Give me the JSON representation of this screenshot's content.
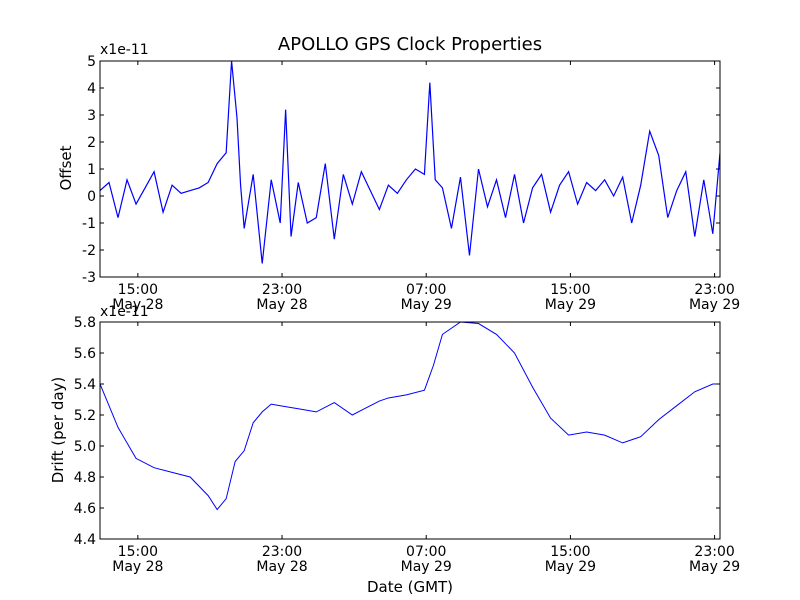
{
  "figure_title": "APOLLO GPS Clock Properties",
  "line_color": "#0000ff",
  "chart_data": [
    {
      "type": "line",
      "name": "offset",
      "ylabel": "Offset",
      "xlabel": "",
      "exponent_label": "x1e-11",
      "ylim": [
        -3,
        5
      ],
      "yticks": [
        -3,
        -2,
        -1,
        0,
        1,
        2,
        3,
        4,
        5
      ],
      "ytick_labels": [
        "-3",
        "-2",
        "-1",
        "0",
        "1",
        "2",
        "3",
        "4",
        "5"
      ],
      "xlim_hours": [
        0,
        34.4
      ],
      "xticks_hours": [
        2.1,
        10.1,
        18.1,
        26.1,
        34.1
      ],
      "xtick_labels": [
        [
          "15:00",
          "May 28"
        ],
        [
          "23:00",
          "May 28"
        ],
        [
          "07:00",
          "May 29"
        ],
        [
          "15:00",
          "May 29"
        ],
        [
          "23:00",
          "May 29"
        ]
      ],
      "x_hours": [
        0,
        0.5,
        1,
        1.5,
        2,
        2.5,
        3,
        3.5,
        4,
        4.5,
        5,
        5.5,
        6,
        6.5,
        7,
        7.3,
        7.6,
        7.8,
        8,
        8.5,
        9,
        9.5,
        10,
        10.3,
        10.6,
        11,
        11.5,
        12,
        12.5,
        13,
        13.5,
        14,
        14.5,
        15,
        15.5,
        16,
        16.5,
        17,
        17.5,
        18,
        18.3,
        18.6,
        19,
        19.5,
        20,
        20.5,
        21,
        21.5,
        22,
        22.5,
        23,
        23.5,
        24,
        24.5,
        25,
        25.5,
        26,
        26.5,
        27,
        27.5,
        28,
        28.5,
        29,
        29.5,
        30,
        30.5,
        31,
        31.5,
        32,
        32.5,
        33,
        33.5,
        34,
        34.4
      ],
      "values": [
        0.2,
        0.5,
        -0.8,
        0.6,
        -0.3,
        0.3,
        0.9,
        -0.6,
        0.4,
        0.1,
        0.2,
        0.3,
        0.5,
        1.2,
        1.6,
        5.0,
        2.9,
        0.4,
        -1.2,
        0.8,
        -2.5,
        0.6,
        -1.0,
        3.2,
        -1.5,
        0.5,
        -1.0,
        -0.8,
        1.2,
        -1.6,
        0.8,
        -0.3,
        0.9,
        0.2,
        -0.5,
        0.4,
        0.1,
        0.6,
        1.0,
        0.8,
        4.2,
        0.6,
        0.3,
        -1.2,
        0.7,
        -2.2,
        1.0,
        -0.4,
        0.6,
        -0.8,
        0.8,
        -1.0,
        0.3,
        0.8,
        -0.6,
        0.4,
        0.9,
        -0.3,
        0.5,
        0.2,
        0.6,
        0.0,
        0.7,
        -1.0,
        0.4,
        2.4,
        1.5,
        -0.8,
        0.2,
        0.9,
        -1.5,
        0.6,
        -1.4,
        1.6
      ]
    },
    {
      "type": "line",
      "name": "drift",
      "ylabel": "Drift (per day)",
      "xlabel": "Date (GMT)",
      "exponent_label": "x1e-11",
      "ylim": [
        4.4,
        5.8
      ],
      "yticks": [
        4.4,
        4.6,
        4.8,
        5.0,
        5.2,
        5.4,
        5.6,
        5.8
      ],
      "ytick_labels": [
        "4.4",
        "4.6",
        "4.8",
        "5.0",
        "5.2",
        "5.4",
        "5.6",
        "5.8"
      ],
      "xlim_hours": [
        0,
        34.4
      ],
      "xticks_hours": [
        2.1,
        10.1,
        18.1,
        26.1,
        34.1
      ],
      "xtick_labels": [
        [
          "15:00",
          "May 28"
        ],
        [
          "23:00",
          "May 28"
        ],
        [
          "07:00",
          "May 29"
        ],
        [
          "15:00",
          "May 29"
        ],
        [
          "23:00",
          "May 29"
        ]
      ],
      "x_hours": [
        0,
        1,
        2,
        3,
        4,
        5,
        6,
        6.5,
        7,
        7.5,
        8,
        8.5,
        9,
        9.5,
        10,
        11,
        12,
        13,
        14,
        14.5,
        15,
        15.5,
        16,
        17,
        18,
        18.5,
        19,
        20,
        21,
        22,
        23,
        24,
        25,
        26,
        27,
        28,
        29,
        30,
        31,
        32,
        33,
        34,
        34.4
      ],
      "values": [
        5.4,
        5.12,
        4.92,
        4.86,
        4.83,
        4.8,
        4.68,
        4.59,
        4.66,
        4.9,
        4.97,
        5.15,
        5.22,
        5.27,
        5.26,
        5.24,
        5.22,
        5.28,
        5.2,
        5.23,
        5.26,
        5.29,
        5.31,
        5.33,
        5.36,
        5.52,
        5.72,
        5.8,
        5.79,
        5.72,
        5.6,
        5.38,
        5.18,
        5.07,
        5.09,
        5.07,
        5.02,
        5.06,
        5.17,
        5.26,
        5.35,
        5.4,
        5.4
      ]
    }
  ]
}
